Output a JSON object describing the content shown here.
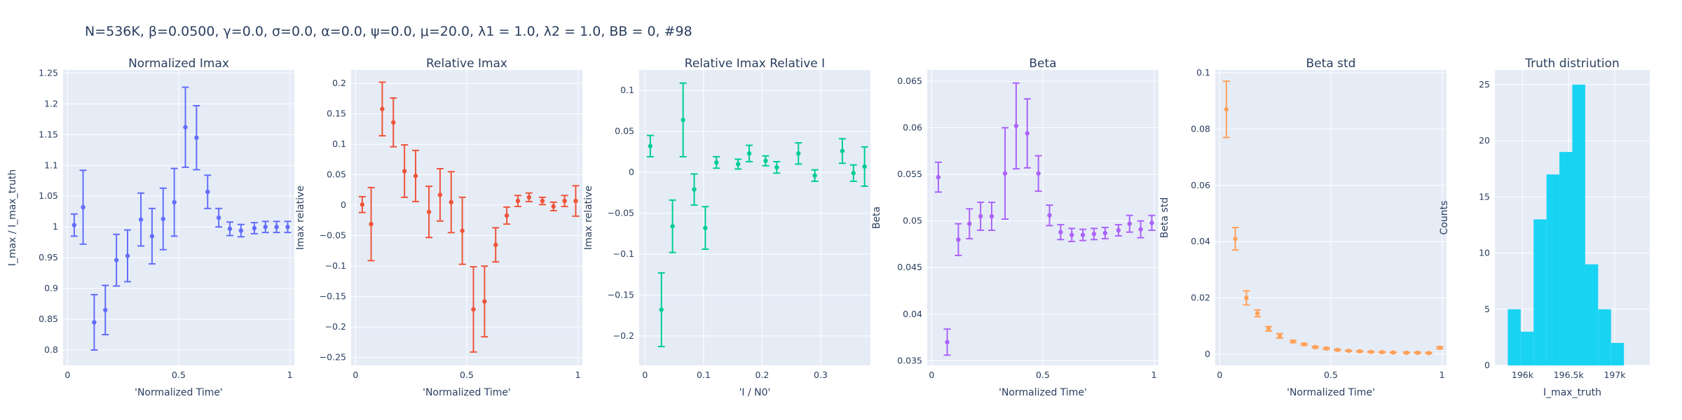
{
  "figure": {
    "title": "N=536K, β=0.0500, γ=0.0, σ=0.0,  α=0.0, ψ=0.0, μ=20.0, λ1 = 1.0, λ2 = 1.0, BB = 0, #98",
    "plot_bg": "#e5ecf6",
    "grid_color": "#ffffff",
    "text_color": "#2a3f5f"
  },
  "chart_data": [
    {
      "type": "scatter",
      "title": "Normalized Imax",
      "xlabel": "'Normalized Time'",
      "ylabel": "I_max / I_max_truth",
      "color": "#636efa",
      "xlim": [
        -0.02,
        1.02
      ],
      "ylim": [
        0.775,
        1.255
      ],
      "xticks": [
        0,
        0.5,
        1
      ],
      "xtick_labels": [
        "0",
        "0.5",
        "1"
      ],
      "yticks": [
        0.8,
        0.85,
        0.9,
        0.95,
        1,
        1.05,
        1.1,
        1.15,
        1.2,
        1.25
      ],
      "ytick_labels": [
        "0.8",
        "0.85",
        "0.9",
        "0.95",
        "1",
        "1.05",
        "1.1",
        "1.15",
        "1.2",
        "1.25"
      ],
      "x": [
        0.03,
        0.07,
        0.12,
        0.17,
        0.22,
        0.27,
        0.33,
        0.38,
        0.43,
        0.48,
        0.53,
        0.58,
        0.63,
        0.68,
        0.73,
        0.78,
        0.84,
        0.89,
        0.94,
        0.99
      ],
      "y": [
        1.003,
        1.032,
        0.845,
        0.865,
        0.946,
        0.953,
        1.012,
        0.985,
        1.013,
        1.04,
        1.162,
        1.145,
        1.057,
        1.015,
        0.997,
        0.994,
        0.998,
        1.0,
        1.0,
        1.0
      ],
      "err": [
        0.018,
        0.06,
        0.045,
        0.04,
        0.042,
        0.042,
        0.043,
        0.045,
        0.05,
        0.055,
        0.065,
        0.052,
        0.027,
        0.015,
        0.011,
        0.01,
        0.009,
        0.009,
        0.009,
        0.009
      ]
    },
    {
      "type": "scatter",
      "title": "Relative Imax",
      "xlabel": "'Normalized Time'",
      "ylabel": "Imax relative",
      "color": "#ef553b",
      "xlim": [
        -0.02,
        1.02
      ],
      "ylim": [
        -0.263,
        0.222
      ],
      "xticks": [
        0,
        0.5,
        1
      ],
      "xtick_labels": [
        "0",
        "0.5",
        "1"
      ],
      "yticks": [
        -0.25,
        -0.2,
        -0.15,
        -0.1,
        -0.05,
        0,
        0.05,
        0.1,
        0.15,
        0.2
      ],
      "ytick_labels": [
        "−0.25",
        "−0.2",
        "−0.15",
        "−0.1",
        "−0.05",
        "0",
        "0.05",
        "0.1",
        "0.15",
        "0.2"
      ],
      "x": [
        0.03,
        0.07,
        0.12,
        0.17,
        0.22,
        0.27,
        0.33,
        0.38,
        0.43,
        0.48,
        0.53,
        0.58,
        0.63,
        0.68,
        0.73,
        0.78,
        0.84,
        0.89,
        0.94,
        0.99
      ],
      "y": [
        0.001,
        -0.031,
        0.158,
        0.136,
        0.056,
        0.048,
        -0.011,
        0.017,
        0.005,
        -0.042,
        -0.171,
        -0.158,
        -0.065,
        -0.017,
        0.007,
        0.013,
        0.007,
        -0.002,
        0.007,
        0.007
      ],
      "err": [
        0.013,
        0.06,
        0.044,
        0.04,
        0.043,
        0.042,
        0.042,
        0.043,
        0.05,
        0.055,
        0.07,
        0.058,
        0.028,
        0.014,
        0.009,
        0.007,
        0.006,
        0.007,
        0.009,
        0.025
      ]
    },
    {
      "type": "scatter",
      "title": "Relative Imax Relative I",
      "xlabel": "'I / N0'",
      "ylabel": "Imax relative",
      "color": "#00cc96",
      "xlim": [
        -0.01,
        0.385
      ],
      "ylim": [
        -0.236,
        0.125
      ],
      "xticks": [
        0,
        0.1,
        0.2,
        0.3
      ],
      "xtick_labels": [
        "0",
        "0.1",
        "0.2",
        "0.3"
      ],
      "yticks": [
        -0.2,
        -0.15,
        -0.1,
        -0.05,
        0,
        0.05,
        0.1
      ],
      "ytick_labels": [
        "−0.2",
        "−0.15",
        "−0.1",
        "−0.05",
        "0",
        "0.05",
        "0.1"
      ],
      "x": [
        0.009,
        0.028,
        0.047,
        0.065,
        0.084,
        0.103,
        0.122,
        0.159,
        0.178,
        0.206,
        0.225,
        0.262,
        0.29,
        0.337,
        0.356,
        0.375
      ],
      "y": [
        0.032,
        -0.168,
        -0.066,
        0.064,
        -0.021,
        -0.068,
        0.012,
        0.01,
        0.023,
        0.014,
        0.006,
        0.023,
        -0.004,
        0.026,
        -0.001,
        0.007
      ],
      "err": [
        0.013,
        0.045,
        0.032,
        0.045,
        0.019,
        0.026,
        0.007,
        0.006,
        0.01,
        0.006,
        0.007,
        0.013,
        0.007,
        0.015,
        0.01,
        0.024
      ]
    },
    {
      "type": "scatter",
      "title": "Beta",
      "xlabel": "'Normalized Time'",
      "ylabel": "Beta",
      "color": "#ab63fa",
      "xlim": [
        -0.02,
        1.02
      ],
      "ylim": [
        0.0345,
        0.0662
      ],
      "xticks": [
        0,
        0.5,
        1
      ],
      "xtick_labels": [
        "0",
        "0.5",
        "1"
      ],
      "yticks": [
        0.035,
        0.04,
        0.045,
        0.05,
        0.055,
        0.06,
        0.065
      ],
      "ytick_labels": [
        "0.035",
        "0.04",
        "0.045",
        "0.05",
        "0.055",
        "0.06",
        "0.065"
      ],
      "x": [
        0.03,
        0.07,
        0.12,
        0.17,
        0.22,
        0.27,
        0.33,
        0.38,
        0.43,
        0.48,
        0.53,
        0.58,
        0.63,
        0.68,
        0.73,
        0.78,
        0.84,
        0.89,
        0.94,
        0.99
      ],
      "y": [
        0.0547,
        0.037,
        0.048,
        0.0497,
        0.0505,
        0.0505,
        0.0551,
        0.0602,
        0.0594,
        0.0551,
        0.0506,
        0.0488,
        0.0485,
        0.0485,
        0.0486,
        0.0487,
        0.049,
        0.0497,
        0.0491,
        0.0498
      ],
      "err": [
        0.0016,
        0.0014,
        0.0017,
        0.0016,
        0.0015,
        0.0015,
        0.0049,
        0.0046,
        0.0037,
        0.0019,
        0.0011,
        0.0008,
        0.0007,
        0.0006,
        0.0006,
        0.0006,
        0.0006,
        0.0009,
        0.0009,
        0.0008
      ]
    },
    {
      "type": "scatter",
      "title": "Beta std",
      "xlabel": "'Normalized Time'",
      "ylabel": "Beta std",
      "color": "#ffa15a",
      "xlim": [
        -0.02,
        1.02
      ],
      "ylim": [
        -0.004,
        0.101
      ],
      "xticks": [
        0,
        0.5,
        1
      ],
      "xtick_labels": [
        "0",
        "0.5",
        "1"
      ],
      "yticks": [
        0,
        0.02,
        0.04,
        0.06,
        0.08,
        0.1
      ],
      "ytick_labels": [
        "0",
        "0.02",
        "0.04",
        "0.06",
        "0.08",
        "0.1"
      ],
      "x": [
        0.03,
        0.07,
        0.12,
        0.17,
        0.22,
        0.27,
        0.33,
        0.38,
        0.43,
        0.48,
        0.53,
        0.58,
        0.63,
        0.68,
        0.73,
        0.78,
        0.84,
        0.89,
        0.94,
        0.99
      ],
      "y": [
        0.087,
        0.041,
        0.02,
        0.0145,
        0.009,
        0.0065,
        0.0045,
        0.0035,
        0.0025,
        0.002,
        0.0015,
        0.0012,
        0.001,
        0.0008,
        0.0007,
        0.0006,
        0.0005,
        0.0005,
        0.0004,
        0.0023
      ],
      "err": [
        0.01,
        0.004,
        0.0025,
        0.0012,
        0.0008,
        0.0008,
        0.0004,
        0.0003,
        0.0003,
        0.0003,
        0.0002,
        0.0002,
        0.0002,
        0.0002,
        0.0002,
        0.0002,
        0.0002,
        0.0002,
        0.0002,
        0.0004
      ]
    },
    {
      "type": "bar",
      "title": "Truth distriution",
      "xlabel": "I_max_truth",
      "ylabel": "Counts",
      "color": "#19d3f3",
      "xlim": [
        195700,
        197380
      ],
      "ylim": [
        0,
        26.3
      ],
      "xticks": [
        196000,
        196500,
        197000
      ],
      "xtick_labels": [
        "196k",
        "196.5k",
        "197k"
      ],
      "yticks": [
        0,
        5,
        10,
        15,
        20,
        25
      ],
      "ytick_labels": [
        "0",
        "5",
        "10",
        "15",
        "20",
        "25"
      ],
      "bin_edges": [
        195700,
        195840,
        195980,
        196120,
        196260,
        196400,
        196540,
        196680,
        196820,
        196960,
        197100,
        197240,
        197380
      ],
      "values": [
        0,
        5,
        3,
        13,
        17,
        19,
        25,
        9,
        5,
        2,
        0,
        0
      ]
    }
  ]
}
